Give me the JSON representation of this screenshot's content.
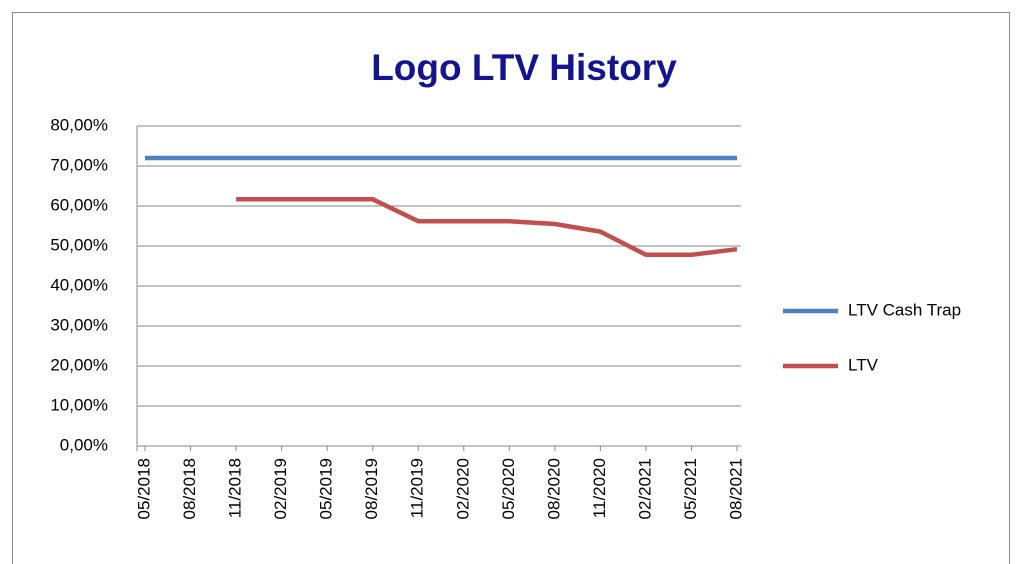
{
  "chart_data": {
    "type": "line",
    "title": "Logo LTV History",
    "categories": [
      "05/2018",
      "08/2018",
      "11/2018",
      "02/2019",
      "05/2019",
      "08/2019",
      "11/2019",
      "02/2020",
      "05/2020",
      "08/2020",
      "11/2020",
      "02/2021",
      "05/2021",
      "08/2021"
    ],
    "series": [
      {
        "name": "LTV Cash Trap",
        "color": "#4f81bd",
        "values": [
          72,
          72,
          72,
          72,
          72,
          72,
          72,
          72,
          72,
          72,
          72,
          72,
          72,
          72
        ]
      },
      {
        "name": "LTV",
        "color": "#c0504d",
        "values": [
          null,
          null,
          61.7,
          61.7,
          61.7,
          61.7,
          56.2,
          56.2,
          56.2,
          55.5,
          53.6,
          47.8,
          47.8,
          49.2
        ]
      }
    ],
    "ylim": [
      0,
      80
    ],
    "yticks": [
      {
        "value": 0,
        "label": "0,00%"
      },
      {
        "value": 10,
        "label": "10,00%"
      },
      {
        "value": 20,
        "label": "20,00%"
      },
      {
        "value": 30,
        "label": "30,00%"
      },
      {
        "value": 40,
        "label": "40,00%"
      },
      {
        "value": 50,
        "label": "50,00%"
      },
      {
        "value": 60,
        "label": "60,00%"
      },
      {
        "value": 70,
        "label": "70,00%"
      },
      {
        "value": 80,
        "label": "80,00%"
      }
    ],
    "grid": true,
    "legend": "right"
  }
}
